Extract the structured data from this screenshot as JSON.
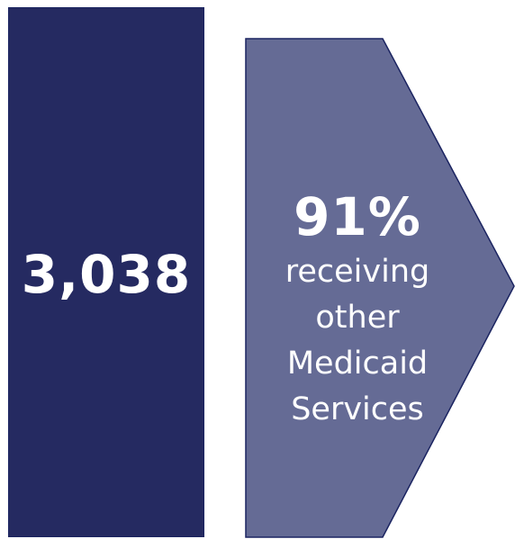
{
  "colors": {
    "bar_fill": "#252a61",
    "arrow_fill": "#656b95",
    "outline": "#1b2461",
    "text": "#ffffff"
  },
  "total": {
    "value": "3,038"
  },
  "arrow": {
    "percent": "91%",
    "lines": [
      "receiving",
      "other",
      "Medicaid",
      "Services"
    ]
  }
}
